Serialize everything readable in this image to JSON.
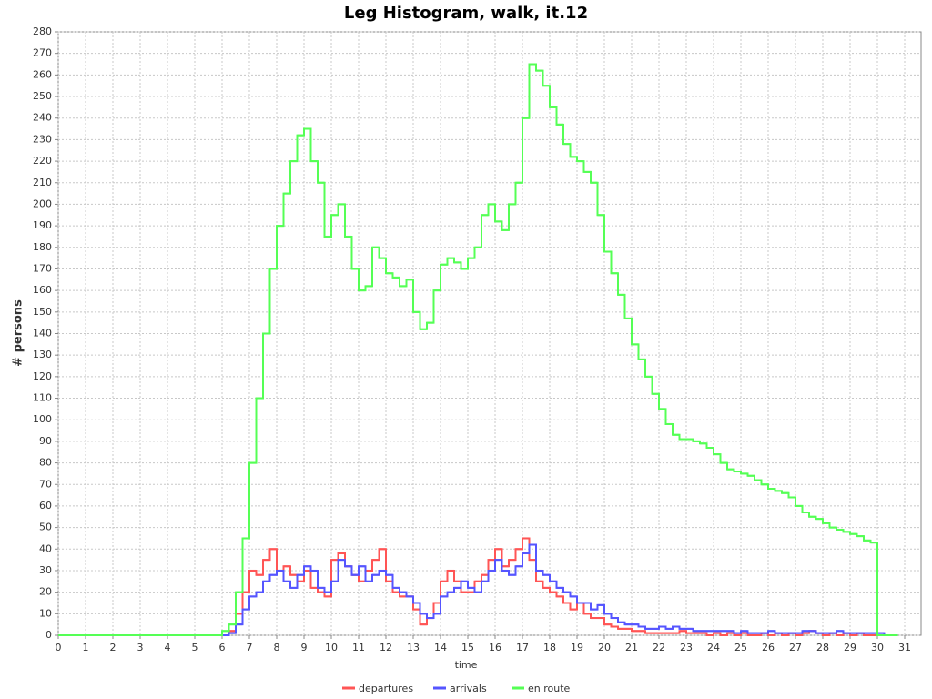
{
  "chart_data": {
    "type": "step",
    "title": "Leg Histogram, walk, it.12",
    "x_label": "time",
    "y_label": "# persons",
    "xlim": [
      0,
      31.6
    ],
    "ylim": [
      0,
      280
    ],
    "xticks": [
      0,
      1,
      2,
      3,
      4,
      5,
      6,
      7,
      8,
      9,
      10,
      11,
      12,
      13,
      14,
      15,
      16,
      17,
      18,
      19,
      20,
      21,
      22,
      23,
      24,
      25,
      26,
      27,
      28,
      29,
      30,
      31
    ],
    "yticks": [
      0,
      10,
      20,
      30,
      40,
      50,
      60,
      70,
      80,
      90,
      100,
      110,
      120,
      130,
      140,
      150,
      160,
      170,
      180,
      190,
      200,
      210,
      220,
      230,
      240,
      250,
      260,
      270,
      280
    ],
    "grid": true,
    "legend": "bottom",
    "x": [
      0,
      6,
      6.25,
      6.5,
      6.75,
      7,
      7.25,
      7.5,
      7.75,
      8,
      8.25,
      8.5,
      8.75,
      9,
      9.25,
      9.5,
      9.75,
      10,
      10.25,
      10.5,
      10.75,
      11,
      11.25,
      11.5,
      11.75,
      12,
      12.25,
      12.5,
      12.75,
      13,
      13.25,
      13.5,
      13.75,
      14,
      14.25,
      14.5,
      14.75,
      15,
      15.25,
      15.5,
      15.75,
      16,
      16.25,
      16.5,
      16.75,
      17,
      17.25,
      17.5,
      17.75,
      18,
      18.25,
      18.5,
      18.75,
      19,
      19.25,
      19.5,
      19.75,
      20,
      20.25,
      20.5,
      20.75,
      21,
      21.25,
      21.5,
      21.75,
      22,
      22.25,
      22.5,
      22.75,
      23,
      23.25,
      23.5,
      23.75,
      24,
      24.25,
      24.5,
      24.75,
      25,
      25.25,
      25.5,
      25.75,
      26,
      26.25,
      26.5,
      26.75,
      27,
      27.25,
      27.5,
      27.75,
      28,
      28.25,
      28.5,
      28.75,
      29,
      29.25,
      29.5,
      29.75,
      30,
      30.25,
      30.5
    ],
    "series": [
      {
        "name": "departures",
        "color": "#ff5555",
        "values": [
          0,
          0,
          2,
          10,
          20,
          30,
          28,
          35,
          40,
          30,
          32,
          28,
          25,
          30,
          22,
          20,
          18,
          35,
          38,
          32,
          28,
          25,
          30,
          35,
          40,
          25,
          20,
          18,
          18,
          12,
          5,
          8,
          15,
          25,
          30,
          25,
          20,
          20,
          25,
          28,
          35,
          40,
          32,
          35,
          40,
          45,
          35,
          25,
          22,
          20,
          18,
          15,
          12,
          15,
          10,
          8,
          8,
          5,
          4,
          3,
          3,
          2,
          2,
          1,
          1,
          1,
          1,
          1,
          2,
          1,
          1,
          1,
          0,
          1,
          0,
          1,
          0,
          1,
          0,
          0,
          1,
          0,
          1,
          0,
          1,
          0,
          1,
          2,
          1,
          0,
          1,
          0,
          1,
          0,
          1,
          0,
          0,
          0,
          0,
          0
        ]
      },
      {
        "name": "arrivals",
        "color": "#5555ff",
        "values": [
          0,
          0,
          1,
          5,
          12,
          18,
          20,
          25,
          28,
          30,
          25,
          22,
          28,
          32,
          30,
          22,
          20,
          25,
          35,
          32,
          28,
          32,
          25,
          28,
          30,
          28,
          22,
          20,
          18,
          15,
          10,
          8,
          10,
          18,
          20,
          22,
          25,
          22,
          20,
          25,
          30,
          35,
          30,
          28,
          32,
          38,
          42,
          30,
          28,
          25,
          22,
          20,
          18,
          15,
          15,
          12,
          14,
          10,
          8,
          6,
          5,
          5,
          4,
          3,
          3,
          4,
          3,
          4,
          3,
          3,
          2,
          2,
          2,
          2,
          2,
          2,
          1,
          2,
          1,
          1,
          1,
          2,
          1,
          1,
          1,
          1,
          2,
          2,
          1,
          1,
          1,
          2,
          1,
          1,
          1,
          1,
          1,
          1,
          0,
          0
        ]
      },
      {
        "name": "en route",
        "color": "#55ff55",
        "values": [
          0,
          2,
          5,
          20,
          45,
          80,
          110,
          140,
          170,
          190,
          205,
          220,
          232,
          235,
          220,
          210,
          185,
          195,
          200,
          185,
          170,
          160,
          162,
          180,
          175,
          168,
          166,
          162,
          165,
          150,
          142,
          145,
          160,
          172,
          175,
          173,
          170,
          175,
          180,
          195,
          200,
          192,
          188,
          200,
          210,
          240,
          265,
          262,
          255,
          245,
          237,
          228,
          222,
          220,
          215,
          210,
          195,
          178,
          168,
          158,
          147,
          135,
          128,
          120,
          112,
          105,
          98,
          93,
          91,
          91,
          90,
          89,
          87,
          84,
          80,
          77,
          76,
          75,
          74,
          72,
          70,
          68,
          67,
          66,
          64,
          60,
          57,
          55,
          54,
          52,
          50,
          49,
          48,
          47,
          46,
          44,
          43,
          0,
          0,
          0
        ]
      }
    ]
  }
}
